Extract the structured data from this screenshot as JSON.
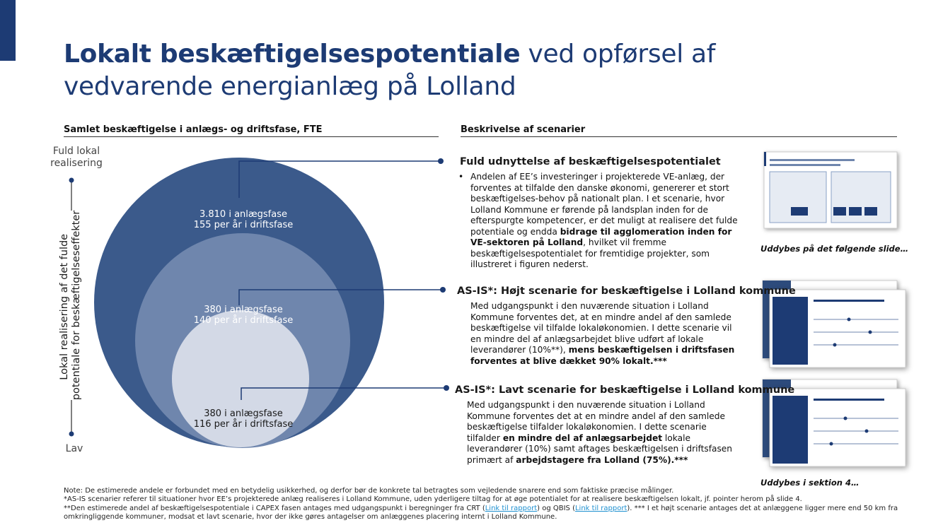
{
  "title": {
    "bold": "Lokalt beskæftigelsespotentiale",
    "rest": " ved opførsel af vedvarende energianlæg på Lolland"
  },
  "left_header": "Samlet beskæftigelse i anlægs- og driftsfase, FTE",
  "right_header": "Beskrivelse af scenarier",
  "axis": {
    "top": "Fuld lokal realisering",
    "bottom": "Lav",
    "label_lines": [
      "Lokal realisering af det fulde",
      "potentiale for beskæftigelseseffekter"
    ]
  },
  "circles": [
    {
      "line1": "3.810 i anlægsfase",
      "line2": "155 per år i driftsfase"
    },
    {
      "line1": "380 i anlægsfase",
      "line2": "140 per år i driftsfase"
    },
    {
      "line1": "380 i anlægsfase",
      "line2": "116 per år i driftsfase"
    }
  ],
  "scenarios": [
    {
      "heading": "Fuld udnyttelse af beskæftigelsespotentialet",
      "segments": [
        {
          "text": "Andelen af EE’s investeringer i projekterede VE-anlæg, der forventes at tilfalde den danske økonomi, genererer et stort beskæftigelses-behov på nationalt plan. I et scenarie, hvor Lolland Kommune er førende på landsplan inden for de efterspurgte kompetencer, er det muligt at realisere det fulde potentiale og endda ",
          "bold": false
        },
        {
          "text": "bidrage til agglomeration inden for VE-sektoren på Lolland",
          "bold": true
        },
        {
          "text": ", hvilket vil fremme beskæftigelsespotentialet for fremtidige projekter, som illustreret i figuren nederst.",
          "bold": false
        }
      ]
    },
    {
      "heading": "AS-IS*: Højt scenarie for beskæftigelse i Lolland kommune",
      "segments": [
        {
          "text": "Med udgangspunkt i den nuværende situation i Lolland Kommune forventes det, at en mindre andel af den samlede beskæftigelse vil tilfalde lokaløkonomien. I dette scenarie vil en mindre del af anlægsarbejdet blive udført af lokale leverandører (10%**), ",
          "bold": false
        },
        {
          "text": "mens beskæftigelsen i driftsfasen forventes at blive dækket 90% lokalt.***",
          "bold": true
        }
      ]
    },
    {
      "heading": "AS-IS*: Lavt scenarie for beskæftigelse i Lolland kommune",
      "segments": [
        {
          "text": "Med udgangspunkt i den nuværende situation i Lolland Kommune forventes det at en mindre andel af den samlede beskæftigelse tilfalder lokaløkonomien. I dette scenarie tilfalder ",
          "bold": false
        },
        {
          "text": "en mindre del af anlægsarbejdet",
          "bold": true
        },
        {
          "text": " lokale leverandører (10%) samt aftages beskæftigelsen i driftsfasen primært af ",
          "bold": false
        },
        {
          "text": "arbejdstagere fra Lolland (75%).***",
          "bold": true
        }
      ]
    }
  ],
  "captions": [
    "Uddybes på det følgende slide…",
    "Uddybes i sektion 4…"
  ],
  "notes": [
    {
      "segments": [
        {
          "text": "Note: De estimerede andele er forbundet med en betydelig usikkerhed, og derfor bør de konkrete tal betragtes som vejledende snarere end som faktiske præcise målinger.",
          "link": false
        }
      ]
    },
    {
      "segments": [
        {
          "text": "*AS-IS scenarier referer til situationer hvor EE’s projekterede anlæg realiseres i Lolland Kommune, uden yderligere tiltag for at øge potentialet for at realisere beskæftigelsen lokalt, jf. pointer herom på slide 4.",
          "link": false
        }
      ]
    },
    {
      "segments": [
        {
          "text": "**Den estimerede andel af beskæftigelsespotentiale i CAPEX fasen antages med udgangspunkt i beregninger fra CRT (",
          "link": false
        },
        {
          "text": "Link til rapport",
          "link": true
        },
        {
          "text": ") og QBIS (",
          "link": false
        },
        {
          "text": "Link til rapport",
          "link": true
        },
        {
          "text": "). *** I et højt scenarie antages det at anlæggene ligger mere end 50 km fra omkringliggende kommuner, modsat et lavt scenarie, hvor der ikke gøres antagelser om anlæggenes placering internt i Lolland Kommune.",
          "link": false
        }
      ]
    }
  ]
}
